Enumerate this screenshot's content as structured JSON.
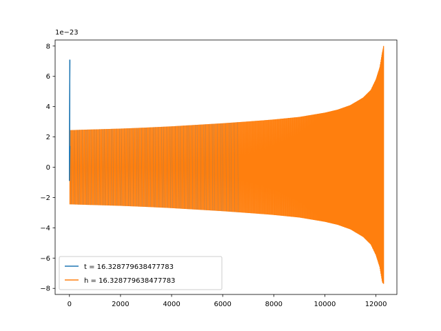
{
  "chart_data": {
    "type": "line",
    "title": "",
    "xlabel": "",
    "ylabel": "",
    "y_scale_label": "1e−23",
    "xlim": [
      -560,
      12820
    ],
    "ylim": [
      -8.4,
      8.4
    ],
    "xticks": [
      0,
      2000,
      4000,
      6000,
      8000,
      10000,
      12000
    ],
    "xtick_labels": [
      "0",
      "2000",
      "4000",
      "6000",
      "8000",
      "10000",
      "12000"
    ],
    "yticks": [
      -8,
      -6,
      -4,
      -2,
      0,
      2,
      4,
      6,
      8
    ],
    "ytick_labels": [
      "−8",
      "−6",
      "−4",
      "−2",
      "0",
      "2",
      "4",
      "6",
      "8"
    ],
    "grid": false,
    "legend_position": "lower-left",
    "series": [
      {
        "name": "t = 16.328779638477783",
        "color": "#1f77b4",
        "style": "spike",
        "x": [
          0,
          0,
          0,
          0
        ],
        "y": [
          -0.9,
          7.1,
          -0.9,
          1.4
        ]
      },
      {
        "name": "h = 16.328779638477783",
        "color": "#ff7f0e",
        "style": "oscillation-envelope",
        "x": [
          0,
          1000,
          2000,
          3000,
          4000,
          5000,
          6000,
          7000,
          8000,
          9000,
          10000,
          10500,
          11000,
          11500,
          11800,
          12000,
          12150,
          12250,
          12300
        ],
        "upper": [
          2.45,
          2.5,
          2.55,
          2.62,
          2.7,
          2.8,
          2.9,
          3.02,
          3.15,
          3.32,
          3.6,
          3.8,
          4.1,
          4.6,
          5.1,
          5.8,
          6.6,
          7.6,
          8.0
        ],
        "lower": [
          -2.45,
          -2.5,
          -2.55,
          -2.62,
          -2.7,
          -2.8,
          -2.9,
          -3.02,
          -3.15,
          -3.32,
          -3.6,
          -3.8,
          -4.1,
          -4.6,
          -5.1,
          -5.8,
          -6.6,
          -7.6,
          -7.7
        ]
      }
    ]
  }
}
